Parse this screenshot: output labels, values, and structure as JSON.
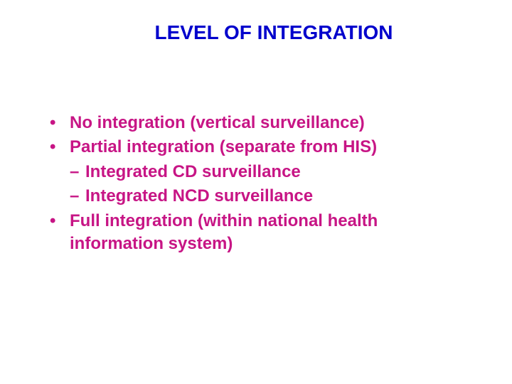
{
  "slide": {
    "title": "LEVEL OF INTEGRATION",
    "title_color": "#0000cc",
    "body_color": "#c71585",
    "background_color": "#ffffff",
    "title_fontsize": 28,
    "body_fontsize": 24,
    "bullets": [
      {
        "text": "No integration (vertical surveillance)",
        "sub": []
      },
      {
        "text": "Partial integration (separate from HIS)",
        "sub": [
          "Integrated CD surveillance",
          "Integrated NCD surveillance"
        ]
      },
      {
        "text": "Full integration (within national health information system)",
        "sub": []
      }
    ]
  }
}
